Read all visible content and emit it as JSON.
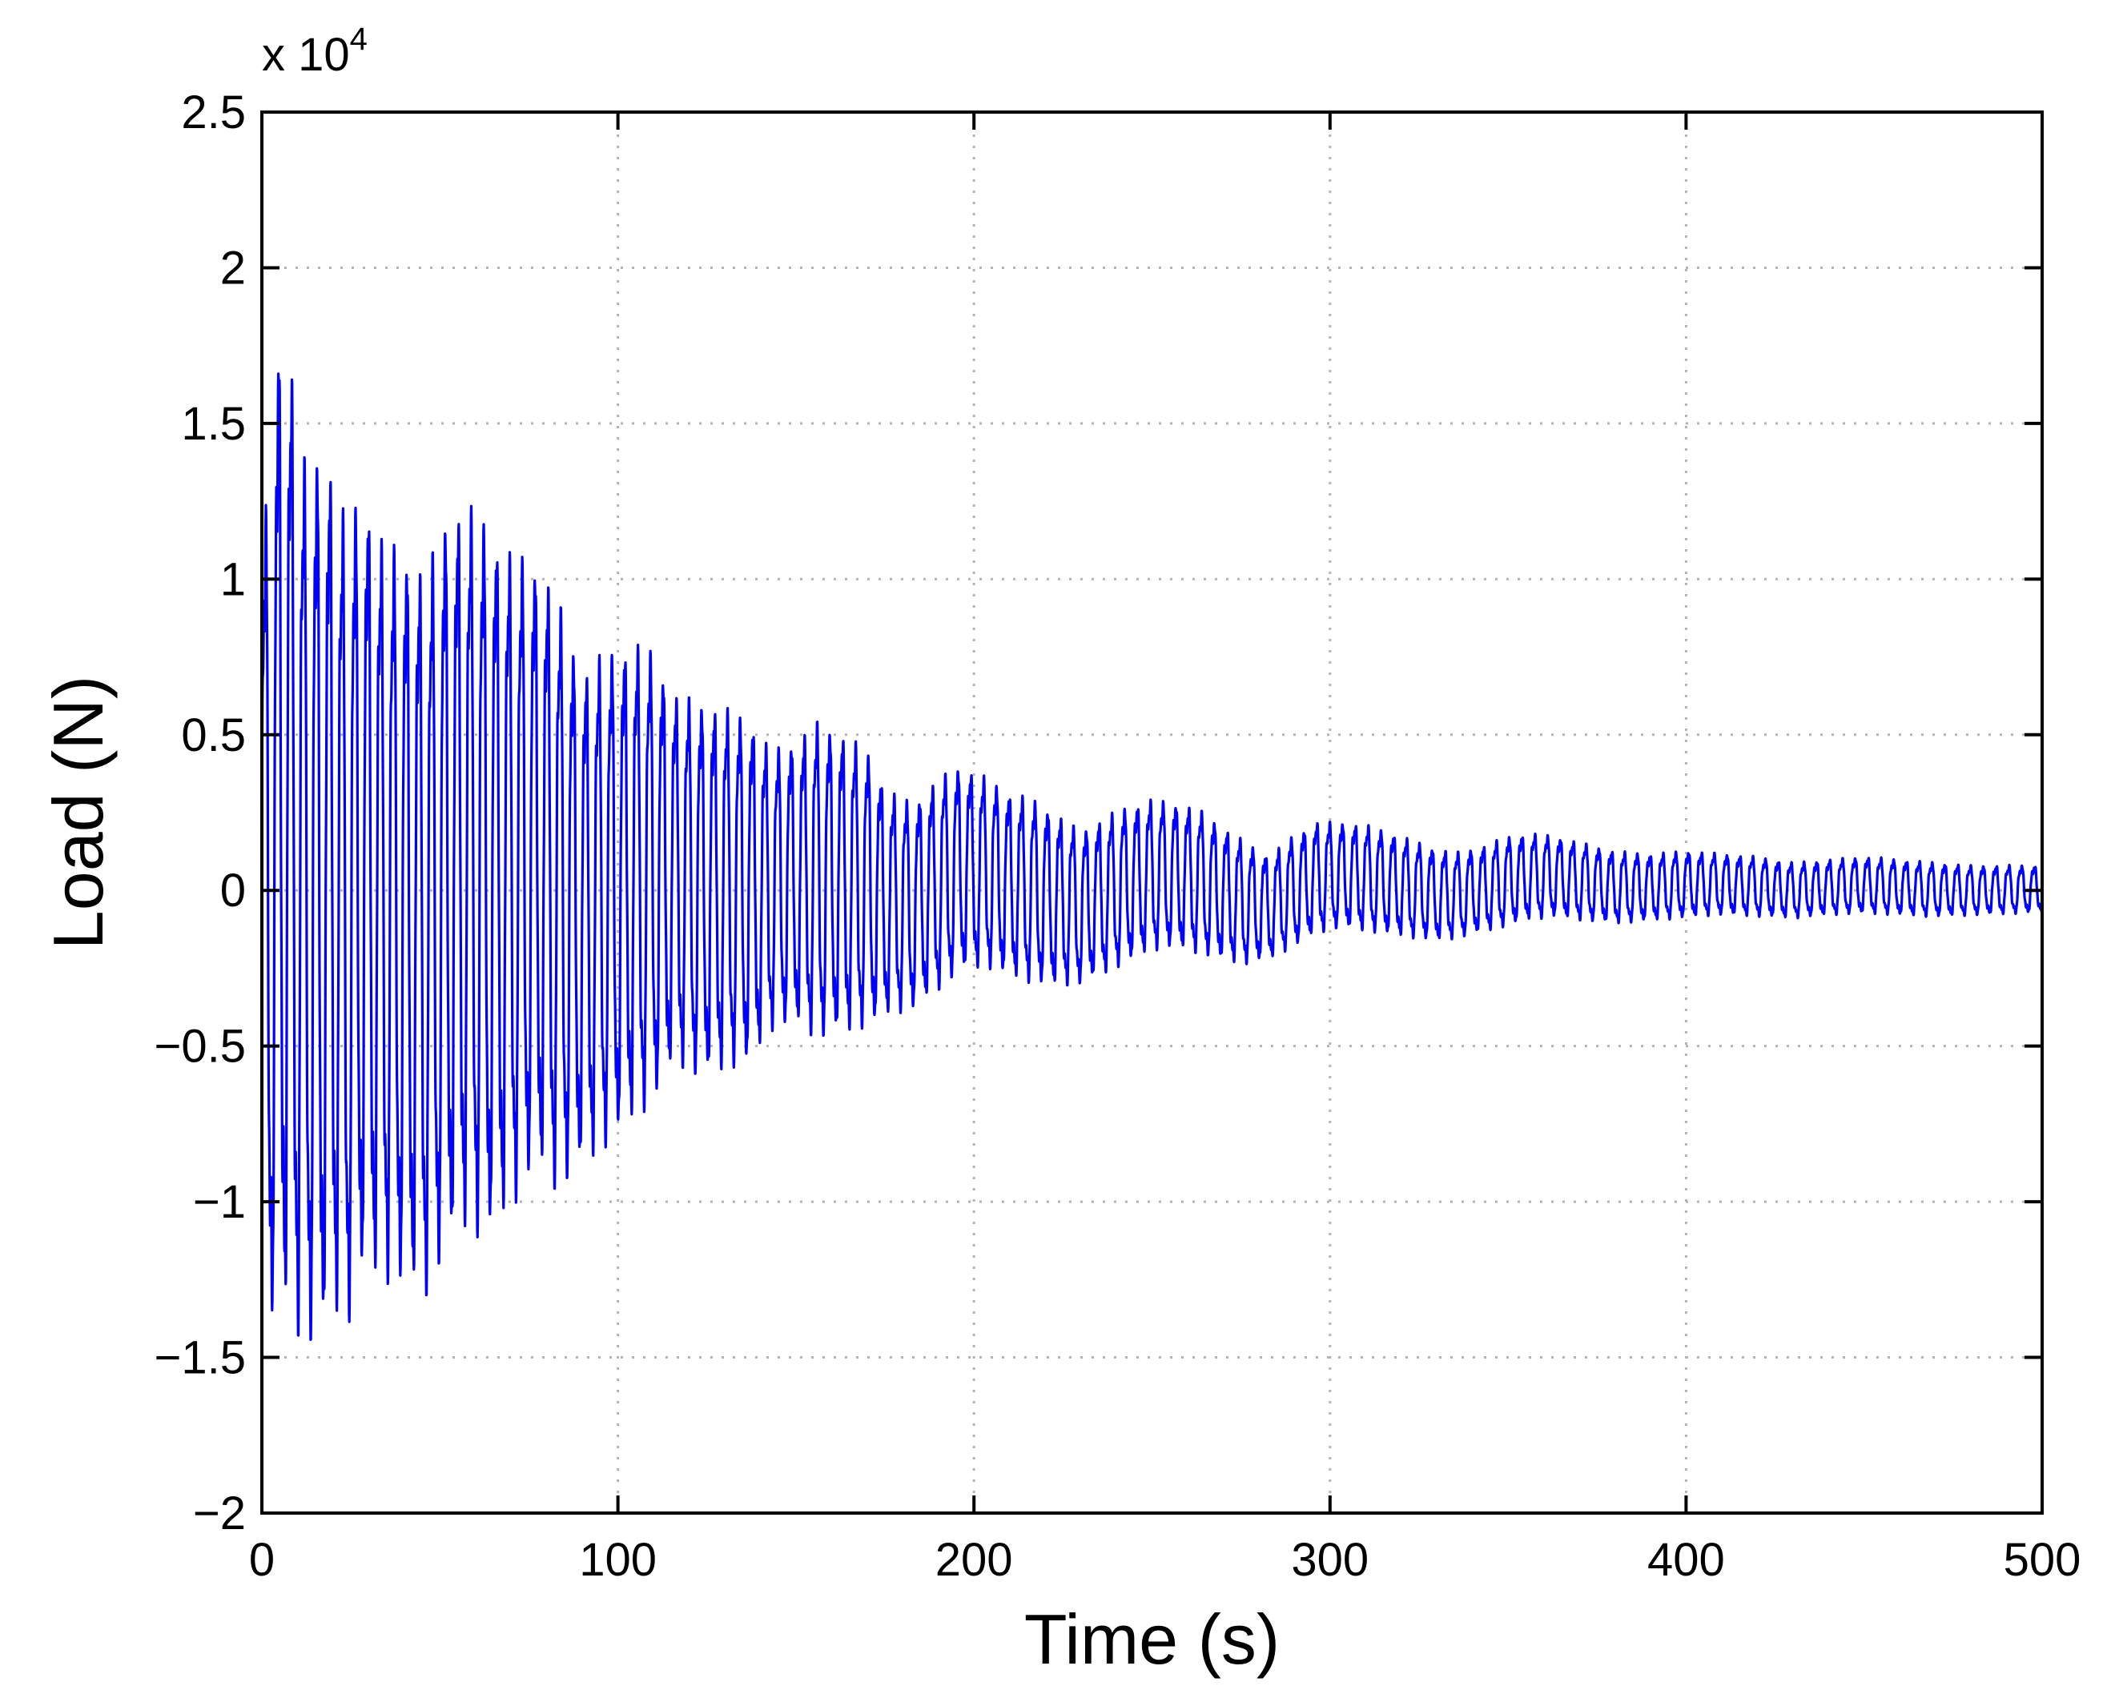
{
  "chart_data": {
    "type": "line",
    "title": "",
    "xlabel": "Time (s)",
    "ylabel": "Load (N)",
    "xlim": [
      0,
      500
    ],
    "ylim": [
      -20000,
      25000
    ],
    "y_multiplier_label": "x 10",
    "y_multiplier_exponent": "4",
    "xticks": [
      0,
      100,
      200,
      300,
      400,
      500
    ],
    "xtick_labels": [
      "0",
      "100",
      "200",
      "300",
      "400",
      "500"
    ],
    "yticks": [
      -20000,
      -15000,
      -10000,
      -5000,
      0,
      5000,
      10000,
      15000,
      20000,
      25000
    ],
    "ytick_labels": [
      "−2",
      "−1.5",
      "−1",
      "−0.5",
      "0",
      "0.5",
      "1",
      "1.5",
      "2",
      "2.5"
    ],
    "grid": true,
    "legend": "none",
    "series": [
      {
        "color": "#0000ff",
        "oscillation_period_s": 3.6,
        "peak_times_s": [
          0,
          2,
          5,
          8,
          12,
          16,
          20,
          24,
          28,
          34,
          40,
          46,
          52,
          57,
          63,
          70,
          77,
          83,
          90,
          96,
          103,
          110,
          116,
          123,
          130,
          137,
          143,
          150,
          156,
          163,
          170,
          176,
          183,
          190,
          196,
          203,
          210,
          216,
          223,
          230,
          236,
          243,
          250,
          256,
          263,
          270,
          276,
          283,
          290,
          296,
          303,
          310,
          316,
          323,
          330,
          336,
          343,
          350,
          356,
          363,
          370,
          380,
          390,
          400,
          410,
          420,
          430,
          440,
          450,
          460,
          470,
          480,
          490,
          500
        ],
        "upper_envelope": [
          13500,
          14200,
          20300,
          18900,
          15500,
          16000,
          15200,
          13000,
          14800,
          12500,
          12500,
          11500,
          13600,
          13700,
          13300,
          12000,
          11800,
          10500,
          8000,
          8500,
          8900,
          8500,
          7000,
          6800,
          6500,
          6200,
          5000,
          5400,
          6000,
          5600,
          5000,
          3600,
          3200,
          4000,
          4400,
          4000,
          3500,
          3300,
          2800,
          2200,
          2600,
          3000,
          3200,
          3100,
          2900,
          2300,
          1800,
          1300,
          2000,
          2400,
          2400,
          2300,
          2100,
          1800,
          1500,
          1400,
          1600,
          1900,
          2000,
          1900,
          1700,
          1400,
          1300,
          1400,
          1300,
          1200,
          1000,
          1100,
          1200,
          1100,
          1000,
          900,
          900,
          900
        ],
        "lower_envelope": [
          -13500,
          -15800,
          -15000,
          -15800,
          -16200,
          -16500,
          -15000,
          -15500,
          -14000,
          -13800,
          -14200,
          -14400,
          -13000,
          -12200,
          -12600,
          -11400,
          -10000,
          -10800,
          -9800,
          -9200,
          -8400,
          -7600,
          -6200,
          -6800,
          -6400,
          -6200,
          -5000,
          -4800,
          -5400,
          -5100,
          -4900,
          -4400,
          -4200,
          -3600,
          -3000,
          -2800,
          -3100,
          -3300,
          -3400,
          -3300,
          -3000,
          -2600,
          -2200,
          -2100,
          -2300,
          -2500,
          -2600,
          -2400,
          -2000,
          -1600,
          -1400,
          -1500,
          -1600,
          -1700,
          -1800,
          -1700,
          -1500,
          -1300,
          -1100,
          -1000,
          -1100,
          -1200,
          -1100,
          -1000,
          -900,
          -950,
          -1000,
          -900,
          -850,
          -900,
          -950,
          -900,
          -850,
          -800
        ]
      }
    ]
  }
}
